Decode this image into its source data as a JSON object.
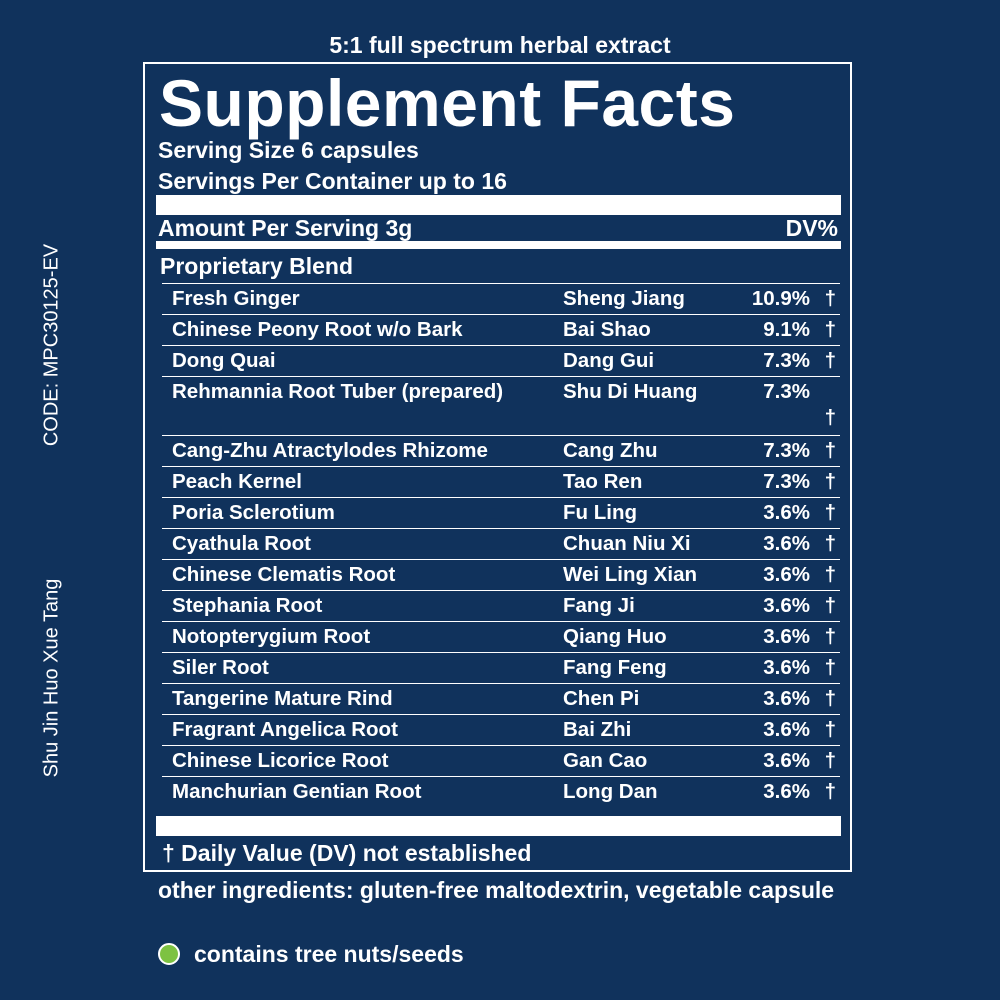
{
  "side": {
    "code": "CODE: MPC30125-EV",
    "formula_name": "Shu Jin Huo Xue Tang"
  },
  "header": {
    "caption": "5:1 full spectrum herbal extract"
  },
  "facts": {
    "title": "Supplement Facts",
    "serving_size": "Serving Size 6 capsules",
    "servings_per_container": "Servings Per Container up to 16",
    "amount_per_serving": "Amount Per Serving 3g",
    "dv_header": "DV%",
    "blend_title": "Proprietary Blend",
    "ingredients": [
      {
        "name": "Fresh Ginger",
        "pinyin": "Sheng Jiang",
        "percent": "10.9%",
        "dv": "†"
      },
      {
        "name": "Chinese Peony Root w/o Bark",
        "pinyin": "Bai Shao",
        "percent": "9.1%",
        "dv": "†"
      },
      {
        "name": "Dong Quai",
        "pinyin": "Dang Gui",
        "percent": "7.3%",
        "dv": "†"
      },
      {
        "name": "Rehmannia Root Tuber (prepared)",
        "pinyin": "Shu Di Huang",
        "percent": "7.3%",
        "dv": "†"
      },
      {
        "name": "Cang-Zhu Atractylodes Rhizome",
        "pinyin": "Cang Zhu",
        "percent": "7.3%",
        "dv": "†"
      },
      {
        "name": "Peach Kernel",
        "pinyin": "Tao Ren",
        "percent": "7.3%",
        "dv": "†"
      },
      {
        "name": "Poria Sclerotium",
        "pinyin": "Fu Ling",
        "percent": "3.6%",
        "dv": "†"
      },
      {
        "name": "Cyathula Root",
        "pinyin": "Chuan Niu Xi",
        "percent": "3.6%",
        "dv": "†"
      },
      {
        "name": "Chinese Clematis Root",
        "pinyin": "Wei Ling Xian",
        "percent": "3.6%",
        "dv": "†"
      },
      {
        "name": "Stephania Root",
        "pinyin": "Fang Ji",
        "percent": "3.6%",
        "dv": "†"
      },
      {
        "name": "Notopterygium Root",
        "pinyin": "Qiang Huo",
        "percent": "3.6%",
        "dv": "†"
      },
      {
        "name": "Siler Root",
        "pinyin": "Fang Feng",
        "percent": "3.6%",
        "dv": "†"
      },
      {
        "name": "Tangerine Mature Rind",
        "pinyin": "Chen Pi",
        "percent": "3.6%",
        "dv": "†"
      },
      {
        "name": "Fragrant Angelica Root",
        "pinyin": "Bai Zhi",
        "percent": "3.6%",
        "dv": "†"
      },
      {
        "name": "Chinese Licorice Root",
        "pinyin": "Gan Cao",
        "percent": "3.6%",
        "dv": "†"
      },
      {
        "name": "Manchurian Gentian Root",
        "pinyin": "Long Dan",
        "percent": "3.6%",
        "dv": "†"
      }
    ],
    "dv_note": "† Daily Value (DV) not established"
  },
  "footer": {
    "other_ingredients": "other ingredients: gluten-free maltodextrin, vegetable capsule",
    "allergen": "contains tree nuts/seeds",
    "allergen_icon": "green-dot-icon",
    "allergen_color": "#7dc242"
  },
  "colors": {
    "background": "#10325c",
    "text": "#ffffff"
  }
}
